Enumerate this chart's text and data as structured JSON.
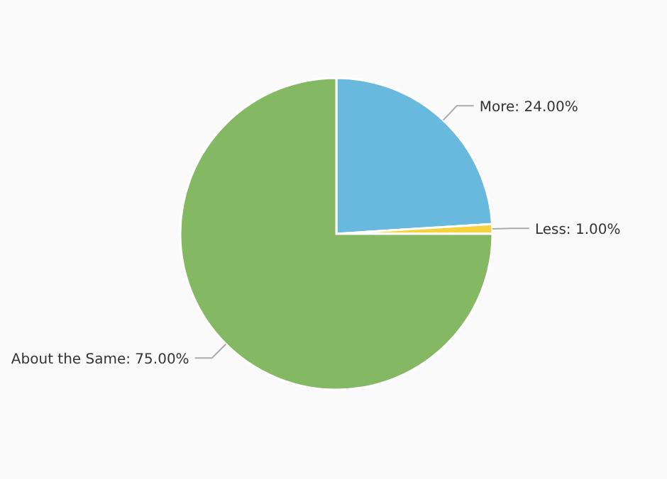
{
  "chart_data": {
    "type": "pie",
    "categories": [
      "More",
      "Less",
      "About the Same"
    ],
    "values": [
      24,
      1,
      75
    ],
    "colors": [
      "#69b8de",
      "#f5d33f",
      "#84b862"
    ],
    "value_labels": [
      "24.00%",
      "1.00%",
      "75.00%"
    ]
  }
}
